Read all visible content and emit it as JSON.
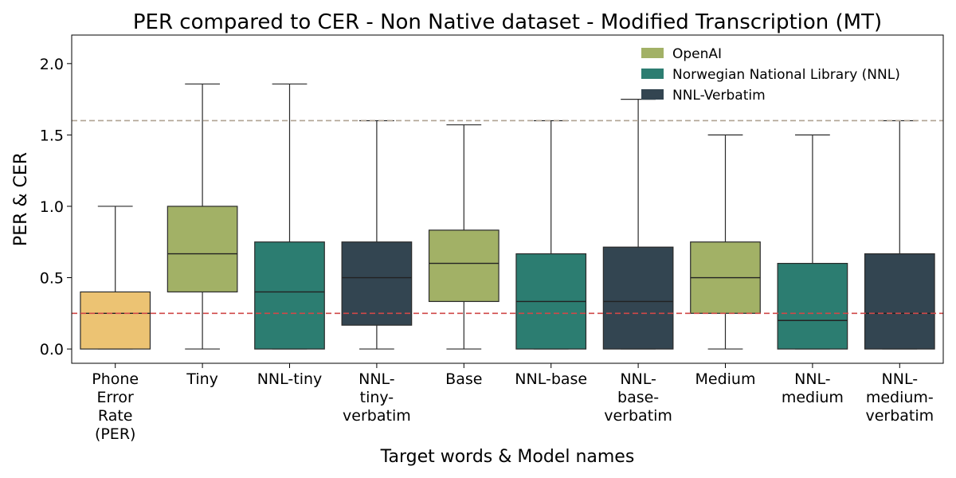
{
  "chart_data": {
    "type": "box",
    "title": "PER compared to CER  - Non Native dataset - Modified Transcription (MT)",
    "xlabel": "Target words  &  Model names",
    "ylabel": "PER & CER",
    "ylim": [
      -0.1,
      2.2
    ],
    "yticks": [
      0.0,
      0.5,
      1.0,
      1.5,
      2.0
    ],
    "ytick_labels": [
      "0.0",
      "0.5",
      "1.0",
      "1.5",
      "2.0"
    ],
    "grid": false,
    "legend": {
      "placement": "top-right",
      "entries": [
        {
          "label": "OpenAI",
          "color": "#a2b166"
        },
        {
          "label": "Norwegian National Library (NNL)",
          "color": "#2c7d71"
        },
        {
          "label": "NNL-Verbatim",
          "color": "#334551"
        }
      ]
    },
    "reference_lines": [
      {
        "y": 1.6,
        "color": "#b0a393",
        "style": "dashed"
      },
      {
        "y": 0.25,
        "color": "#d04848",
        "style": "dashed"
      }
    ],
    "categories": [
      {
        "label": [
          "Phone",
          "Error",
          "Rate",
          "(PER)"
        ],
        "whisker_low": 0.0,
        "q1": 0.0,
        "median": 0.25,
        "q3": 0.4,
        "whisker_high": 1.0,
        "color": "#ecc373"
      },
      {
        "label": [
          "Tiny"
        ],
        "whisker_low": 0.0,
        "q1": 0.4,
        "median": 0.667,
        "q3": 1.0,
        "whisker_high": 1.857,
        "color": "#a2b166"
      },
      {
        "label": [
          "NNL-tiny"
        ],
        "whisker_low": 0.0,
        "q1": 0.0,
        "median": 0.4,
        "q3": 0.75,
        "whisker_high": 1.857,
        "color": "#2c7d71"
      },
      {
        "label": [
          "NNL-",
          "tiny-",
          "verbatim"
        ],
        "whisker_low": 0.0,
        "q1": 0.167,
        "median": 0.5,
        "q3": 0.75,
        "whisker_high": 1.6,
        "color": "#334551"
      },
      {
        "label": [
          "Base"
        ],
        "whisker_low": 0.0,
        "q1": 0.333,
        "median": 0.6,
        "q3": 0.833,
        "whisker_high": 1.571,
        "color": "#a2b166"
      },
      {
        "label": [
          "NNL-base"
        ],
        "whisker_low": 0.0,
        "q1": 0.0,
        "median": 0.333,
        "q3": 0.667,
        "whisker_high": 1.6,
        "color": "#2c7d71"
      },
      {
        "label": [
          "NNL-",
          "base-",
          "verbatim"
        ],
        "whisker_low": 0.0,
        "q1": 0.0,
        "median": 0.333,
        "q3": 0.714,
        "whisker_high": 1.75,
        "color": "#334551"
      },
      {
        "label": [
          "Medium"
        ],
        "whisker_low": 0.0,
        "q1": 0.25,
        "median": 0.5,
        "q3": 0.75,
        "whisker_high": 1.5,
        "color": "#a2b166"
      },
      {
        "label": [
          "NNL-",
          "medium"
        ],
        "whisker_low": 0.0,
        "q1": 0.0,
        "median": 0.2,
        "q3": 0.6,
        "whisker_high": 1.5,
        "color": "#2c7d71"
      },
      {
        "label": [
          "NNL-",
          "medium-",
          "verbatim"
        ],
        "whisker_low": 0.0,
        "q1": 0.0,
        "median": 0.25,
        "q3": 0.667,
        "whisker_high": 1.6,
        "color": "#334551"
      }
    ]
  }
}
